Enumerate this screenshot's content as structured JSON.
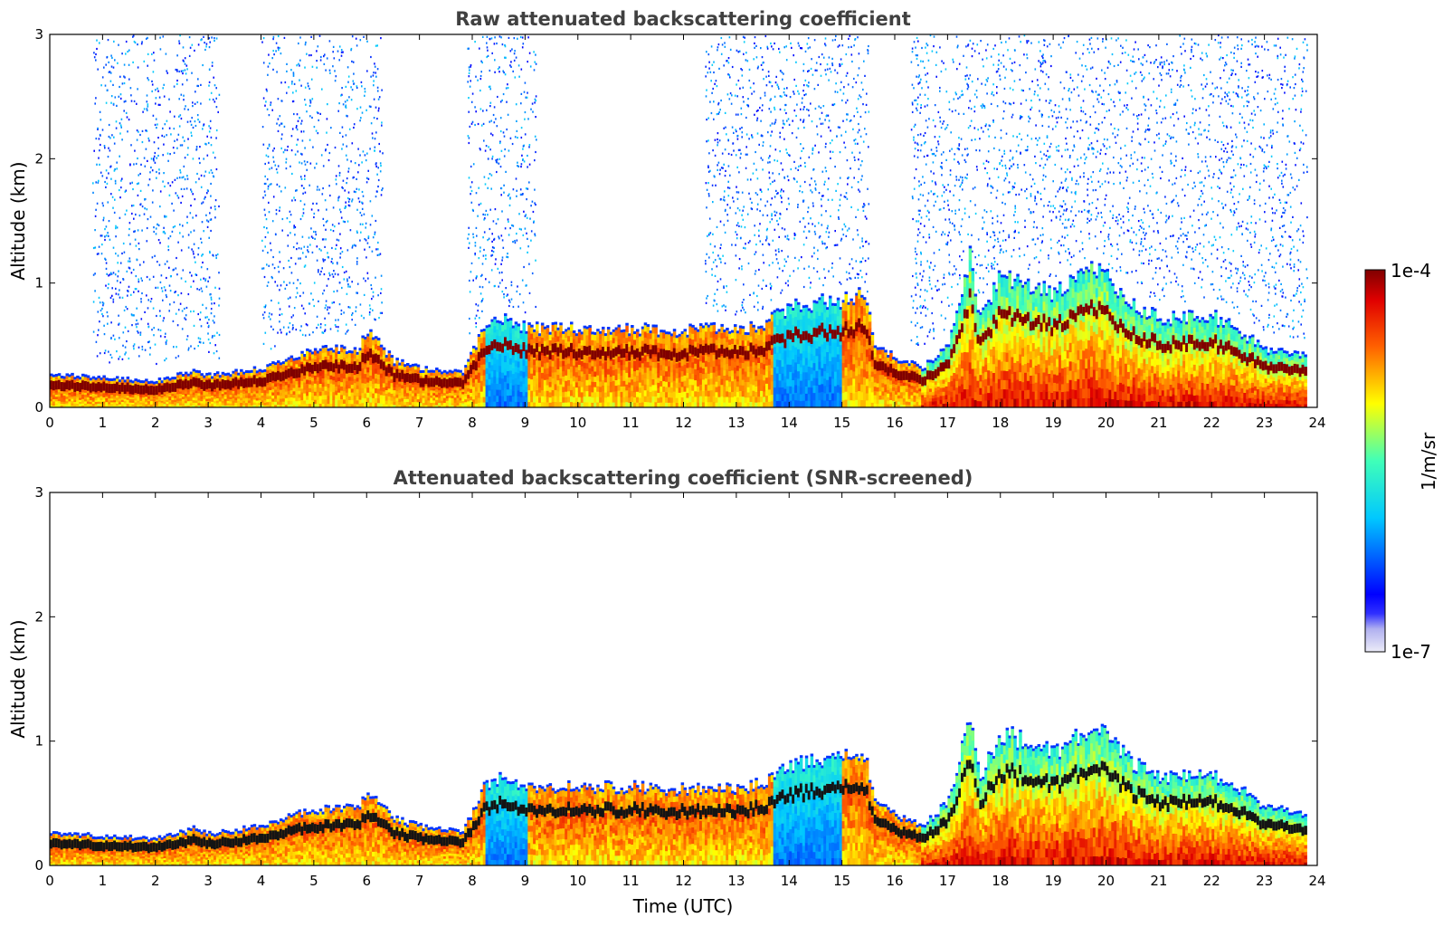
{
  "chart_data": [
    {
      "type": "heatmap",
      "title": "Raw attenuated backscattering coefficient",
      "xlabel": "",
      "ylabel": "Altitude (km)",
      "xlim": [
        0,
        24
      ],
      "ylim": [
        0,
        3
      ],
      "x_ticks": [
        "0",
        "1",
        "2",
        "3",
        "4",
        "5",
        "6",
        "7",
        "8",
        "9",
        "10",
        "11",
        "12",
        "13",
        "14",
        "15",
        "16",
        "17",
        "18",
        "19",
        "20",
        "21",
        "22",
        "23",
        "24"
      ],
      "y_ticks": [
        "0",
        "1",
        "2",
        "3"
      ],
      "layer_top_km": [
        [
          0,
          0.25
        ],
        [
          1,
          0.22
        ],
        [
          2,
          0.2
        ],
        [
          2.7,
          0.28
        ],
        [
          3,
          0.24
        ],
        [
          4,
          0.3
        ],
        [
          4.8,
          0.42
        ],
        [
          5.2,
          0.45
        ],
        [
          5.8,
          0.45
        ],
        [
          6,
          0.6
        ],
        [
          6.5,
          0.36
        ],
        [
          7,
          0.3
        ],
        [
          7.8,
          0.26
        ],
        [
          8.2,
          0.62
        ],
        [
          8.5,
          0.7
        ],
        [
          9,
          0.62
        ],
        [
          9.5,
          0.62
        ],
        [
          10,
          0.62
        ],
        [
          11,
          0.62
        ],
        [
          12,
          0.6
        ],
        [
          12.5,
          0.62
        ],
        [
          13,
          0.6
        ],
        [
          13.5,
          0.65
        ],
        [
          14,
          0.8
        ],
        [
          15,
          0.85
        ],
        [
          15.4,
          0.9
        ],
        [
          15.6,
          0.5
        ],
        [
          16,
          0.38
        ],
        [
          16.5,
          0.3
        ],
        [
          17,
          0.5
        ],
        [
          17.4,
          1.2
        ],
        [
          17.6,
          0.7
        ],
        [
          18,
          1.05
        ],
        [
          19,
          0.9
        ],
        [
          19.8,
          1.1
        ],
        [
          20.5,
          0.8
        ],
        [
          21,
          0.7
        ],
        [
          22,
          0.72
        ],
        [
          22.5,
          0.6
        ],
        [
          23,
          0.45
        ],
        [
          23.8,
          0.4
        ]
      ]
    },
    {
      "type": "heatmap",
      "title": "Attenuated backscattering coefficient (SNR-screened)",
      "xlabel": "Time (UTC)",
      "ylabel": "Altitude (km)",
      "xlim": [
        0,
        24
      ],
      "ylim": [
        0,
        3
      ],
      "x_ticks": [
        "0",
        "1",
        "2",
        "3",
        "4",
        "5",
        "6",
        "7",
        "8",
        "9",
        "10",
        "11",
        "12",
        "13",
        "14",
        "15",
        "16",
        "17",
        "18",
        "19",
        "20",
        "21",
        "22",
        "23",
        "24"
      ],
      "y_ticks": [
        "0",
        "1",
        "2",
        "3"
      ]
    }
  ],
  "colorbar": {
    "label": "1/m/sr",
    "max_label": "1e-4",
    "min_label": "1e-7",
    "scale": "log",
    "range": [
      1e-07,
      0.0001
    ]
  },
  "colors": {
    "low": "#00007f",
    "mid": "#00ff80",
    "high": "#7f0000"
  }
}
